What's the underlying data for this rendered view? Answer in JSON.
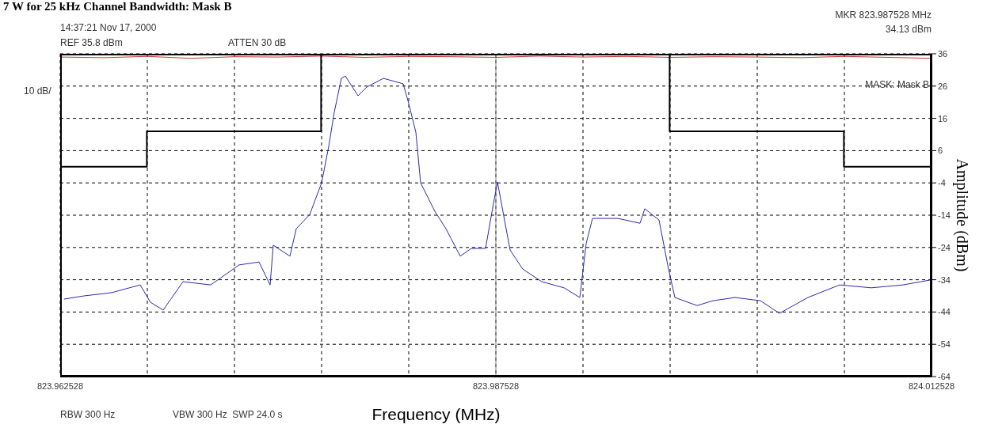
{
  "chart_data": {
    "type": "line",
    "title": "7 W for 25 kHz Channel Bandwidth: Mask B",
    "xlabel": "Frequency (MHz)",
    "ylabel": "Amplitude (dBm)",
    "annotations": [
      "14:37:21 Nov 17, 2000",
      "REF 35.8 dBm",
      "ATTEN 30 dB",
      "MKR 823.987528 MHz",
      "34.13 dBm",
      "10 dB/",
      "MASK: Mask B",
      "RBW 300 Hz",
      "VBW 300 Hz  SWP 24.0 s"
    ],
    "xlim": [
      823.962528,
      824.012528
    ],
    "xticks": [
      823.962528,
      {
        "value": 823.967528,
        "label": null
      },
      {
        "value": 823.972528,
        "label": null
      },
      {
        "value": 823.977528,
        "label": null
      },
      {
        "value": 823.982528,
        "label": null
      },
      823.987528,
      {
        "value": 823.992528,
        "label": null
      },
      {
        "value": 823.997528,
        "label": null
      },
      {
        "value": 824.002528,
        "label": null
      },
      {
        "value": 824.007528,
        "label": null
      },
      824.012528
    ],
    "ylim": [
      -64,
      36
    ],
    "yticks": [
      -64,
      -54,
      -44,
      -34,
      -24,
      -14,
      -4,
      6,
      16,
      26,
      36
    ],
    "grid": true,
    "ref_lines": [
      {
        "axis": "x",
        "value": 823.987528,
        "color": "#808080"
      }
    ],
    "series": [
      {
        "color": "#cc3333",
        "x": [
          823.962528,
          823.965028,
          823.967528,
          823.970028,
          823.972528,
          823.975028,
          823.977528,
          823.980028,
          823.982528,
          823.985028,
          823.987528,
          823.990028,
          823.992528,
          823.995028,
          823.997528,
          824.000028,
          824.002528,
          824.005028,
          824.007528,
          824.010028,
          824.012528
        ],
        "values": [
          35,
          34.8,
          35.2,
          34.6,
          35.1,
          35,
          35.3,
          34.9,
          35.2,
          35.1,
          34.9,
          35.3,
          35,
          35.2,
          34.9,
          35.1,
          35,
          34.8,
          35.2,
          34.9,
          34.6
        ]
      },
      {
        "type": "step",
        "color": "#000000",
        "x": [
          823.962528,
          823.9675,
          823.9775,
          823.9975,
          824.0075,
          824.012528
        ],
        "values": [
          1,
          12,
          36,
          12,
          1,
          1
        ]
      },
      {
        "color": "#2a2ab0",
        "x": [
          823.962742,
          823.963892,
          823.965483,
          823.967119,
          823.96771,
          823.968437,
          823.969573,
          823.971164,
          823.972801,
          823.973937,
          823.974573,
          823.974755,
          823.97571,
          823.976073,
          823.976846,
          823.977528,
          823.977937,
          823.978255,
          823.978664,
          823.978892,
          823.979619,
          823.980119,
          823.981073,
          823.98221,
          823.982528,
          823.982937,
          823.98321,
          823.984028,
          823.984664,
          823.985483,
          823.986119,
          823.986937,
          823.987255,
          823.987619,
          823.988346,
          823.989073,
          823.990164,
          823.991437,
          823.992346,
          823.99271,
          823.993073,
          823.994528,
          823.995801,
          823.996073,
          823.996892,
          823.997437,
          823.997801,
          823.999073,
          823.999983,
          824.001255,
          824.00271,
          824.003801,
          824.005437,
          824.007255,
          824.009073,
          824.010892,
          824.012437
        ],
        "values": [
          -40,
          -39,
          -38,
          -35.6,
          -41,
          -43.4,
          -34.6,
          -35.6,
          -29.4,
          -28.5,
          -35.6,
          -23.3,
          -26.7,
          -18.2,
          -13.8,
          -4,
          7.3,
          17.9,
          28.4,
          29.1,
          23,
          25.7,
          28.4,
          26.7,
          20.6,
          11.7,
          -4,
          -12.8,
          -18.2,
          -26.7,
          -24.3,
          -24.3,
          -14.5,
          -3.7,
          -24.8,
          -30.7,
          -34.6,
          -36.5,
          -39.5,
          -22.8,
          -15,
          -15,
          -16.5,
          -12,
          -15.5,
          -30.7,
          -39.5,
          -42,
          -40.5,
          -39.5,
          -40.5,
          -44.4,
          -39.5,
          -35.6,
          -36.5,
          -35.6,
          -34.1
        ]
      }
    ]
  }
}
